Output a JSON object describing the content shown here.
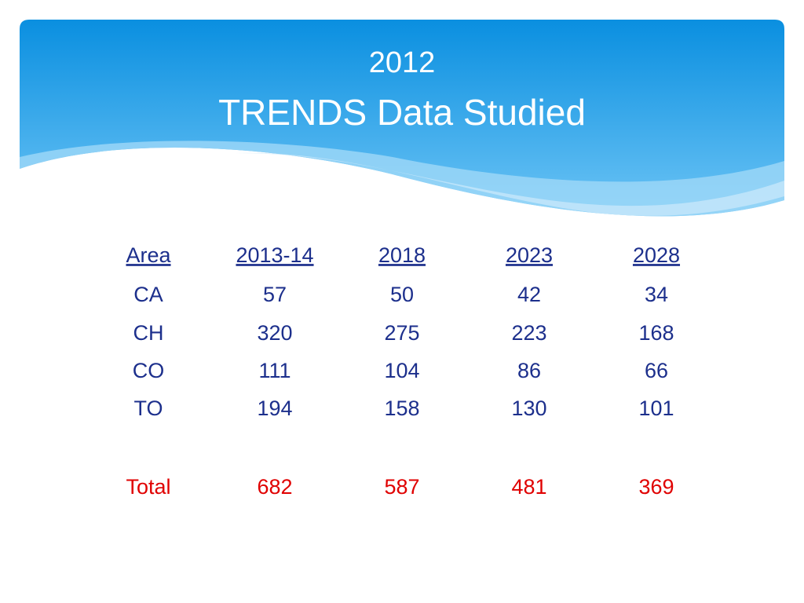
{
  "header": {
    "title_line1": "2012",
    "title_line2": "TRENDS Data Studied"
  },
  "table": {
    "columns": [
      "Area",
      "2013-14",
      "2018",
      "2023",
      "2028"
    ],
    "rows": [
      [
        "CA",
        "57",
        "50",
        "42",
        "34"
      ],
      [
        "CH",
        "320",
        "275",
        "223",
        "168"
      ],
      [
        "CO",
        "111",
        "104",
        "86",
        "66"
      ],
      [
        "TO",
        "194",
        "158",
        "130",
        "101"
      ]
    ],
    "total": [
      "Total",
      "682",
      "587",
      "481",
      "369"
    ]
  }
}
